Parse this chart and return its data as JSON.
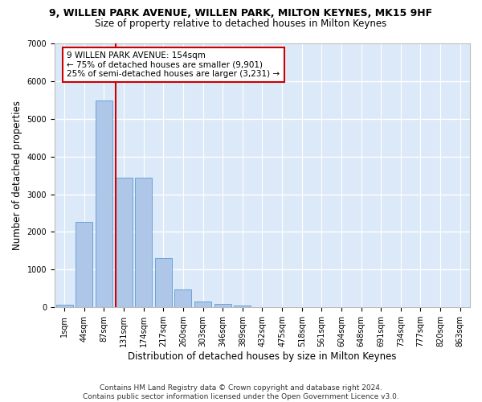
{
  "title": "9, WILLEN PARK AVENUE, WILLEN PARK, MILTON KEYNES, MK15 9HF",
  "subtitle": "Size of property relative to detached houses in Milton Keynes",
  "xlabel": "Distribution of detached houses by size in Milton Keynes",
  "ylabel": "Number of detached properties",
  "bar_values": [
    75,
    2270,
    5480,
    3440,
    3440,
    1310,
    470,
    155,
    80,
    45,
    0,
    0,
    0,
    0,
    0,
    0,
    0,
    0,
    0,
    0,
    0
  ],
  "bar_labels": [
    "1sqm",
    "44sqm",
    "87sqm",
    "131sqm",
    "174sqm",
    "217sqm",
    "260sqm",
    "303sqm",
    "346sqm",
    "389sqm",
    "432sqm",
    "475sqm",
    "518sqm",
    "561sqm",
    "604sqm",
    "648sqm",
    "691sqm",
    "734sqm",
    "777sqm",
    "820sqm",
    "863sqm"
  ],
  "bar_color": "#aec6e8",
  "bar_edgecolor": "#5b9bd5",
  "background_color": "#dce9f8",
  "grid_color": "#ffffff",
  "red_line_x": 2.6,
  "annotation_text": "9 WILLEN PARK AVENUE: 154sqm\n← 75% of detached houses are smaller (9,901)\n25% of semi-detached houses are larger (3,231) →",
  "annotation_box_color": "#ffffff",
  "annotation_box_edgecolor": "#cc0000",
  "ylim": [
    0,
    7000
  ],
  "yticks": [
    0,
    1000,
    2000,
    3000,
    4000,
    5000,
    6000,
    7000
  ],
  "footer": "Contains HM Land Registry data © Crown copyright and database right 2024.\nContains public sector information licensed under the Open Government Licence v3.0.",
  "title_fontsize": 9,
  "subtitle_fontsize": 8.5,
  "xlabel_fontsize": 8.5,
  "ylabel_fontsize": 8.5,
  "tick_fontsize": 7,
  "footer_fontsize": 6.5
}
